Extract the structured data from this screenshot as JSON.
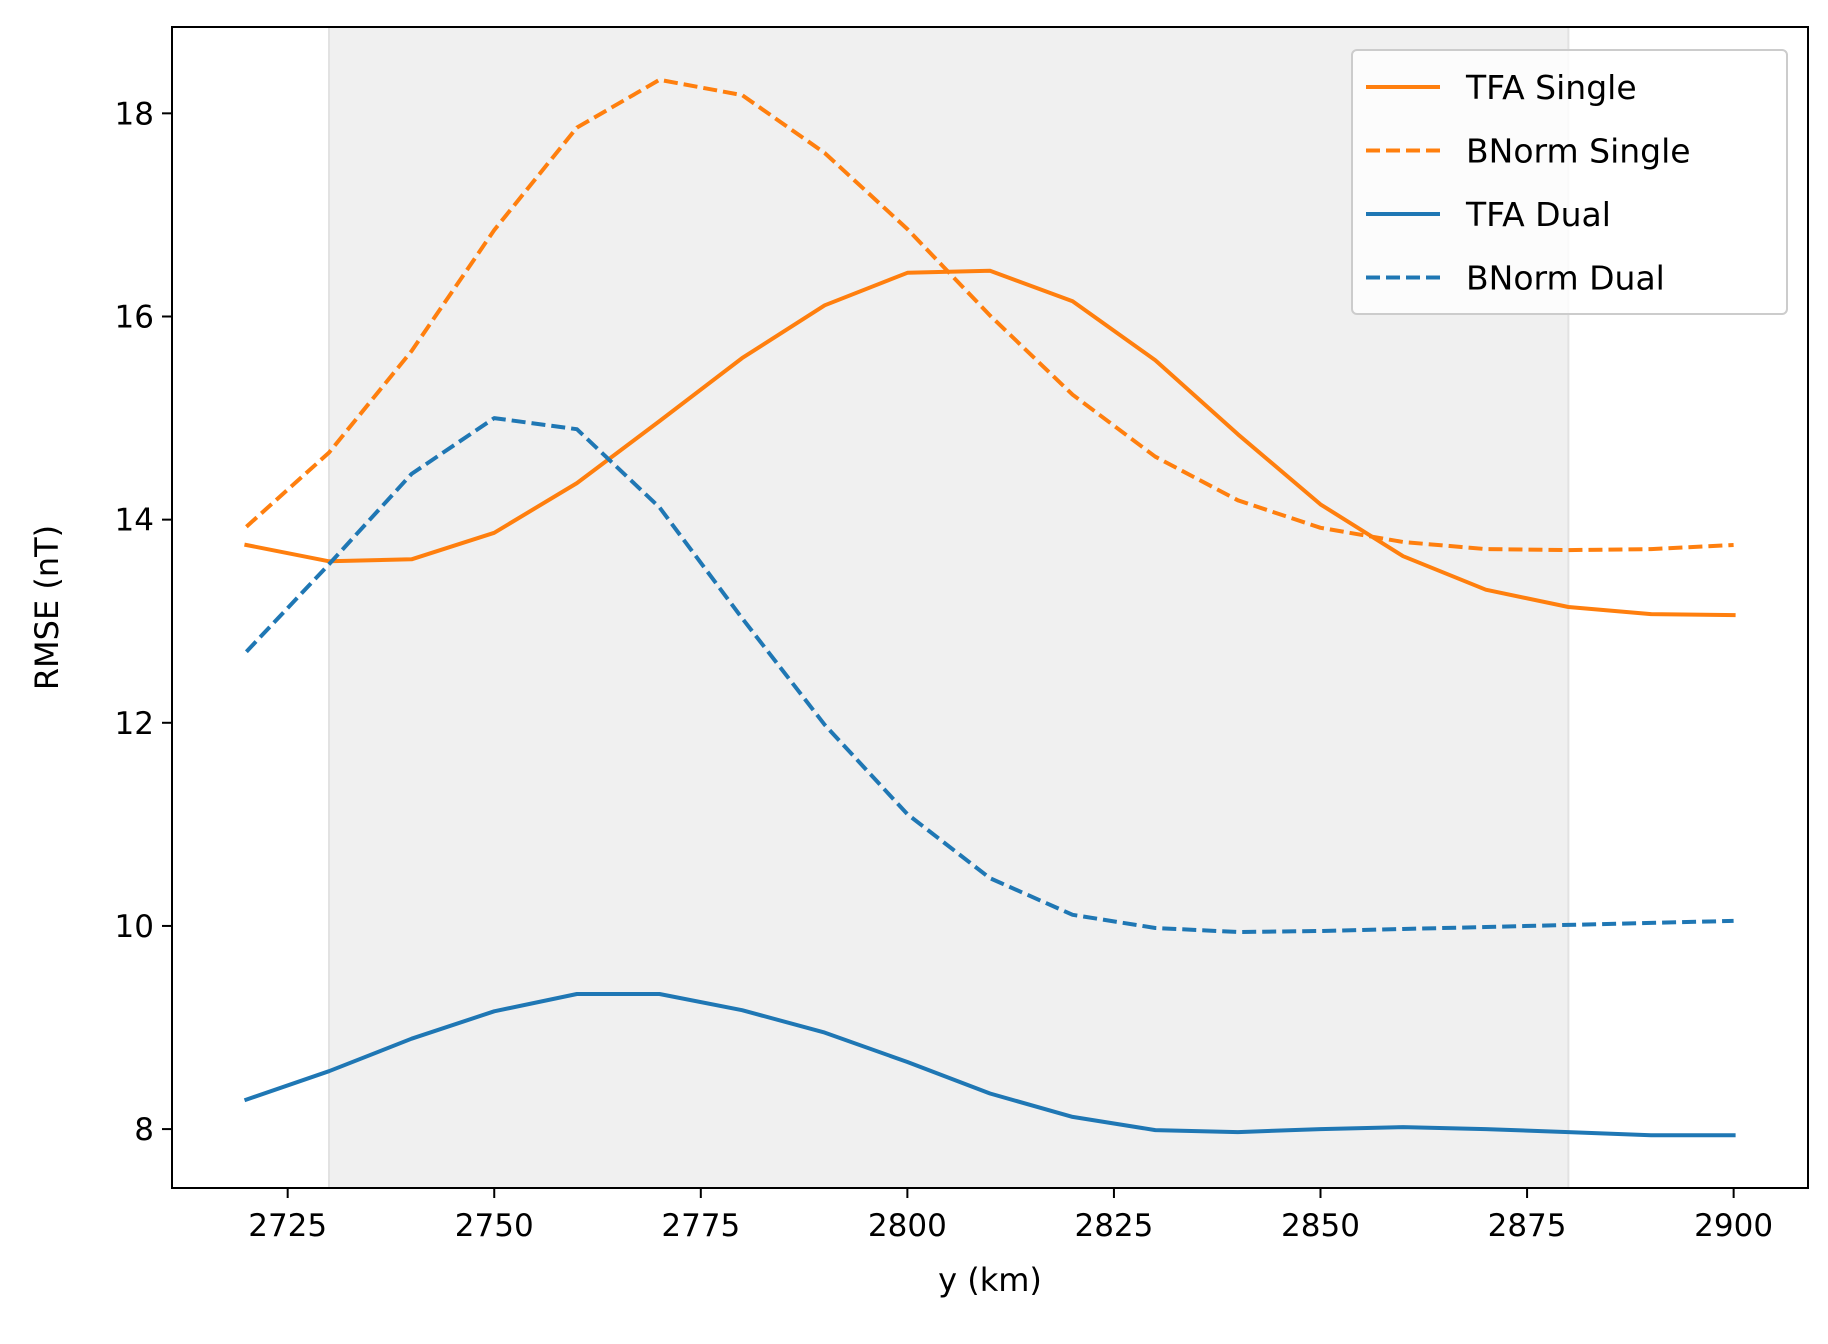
{
  "chart_data": {
    "type": "line",
    "title": "",
    "xlabel": "y (km)",
    "ylabel": "RMSE (nT)",
    "xlim": [
      2711,
      2909
    ],
    "ylim": [
      7.42,
      18.85
    ],
    "xticks": [
      2725,
      2750,
      2775,
      2800,
      2825,
      2850,
      2875,
      2900
    ],
    "yticks": [
      8,
      10,
      12,
      14,
      16,
      18
    ],
    "grid": false,
    "legend_position": "top-right",
    "shaded_region": {
      "x_start": 2730,
      "x_end": 2880,
      "color": "#f0f0f0"
    },
    "x": [
      2720,
      2730,
      2740,
      2750,
      2760,
      2770,
      2780,
      2790,
      2800,
      2810,
      2820,
      2830,
      2840,
      2850,
      2860,
      2870,
      2880,
      2890,
      2900
    ],
    "series": [
      {
        "name": "TFA Single",
        "color": "#ff7f0e",
        "dash": "solid",
        "values": [
          13.75,
          13.59,
          13.61,
          13.87,
          14.36,
          14.97,
          15.59,
          16.11,
          16.43,
          16.45,
          16.15,
          15.57,
          14.84,
          14.15,
          13.64,
          13.31,
          13.14,
          13.07,
          13.06
        ]
      },
      {
        "name": "BNorm Single",
        "color": "#ff7f0e",
        "dash": "dashed",
        "values": [
          13.93,
          14.66,
          15.66,
          16.85,
          17.86,
          18.33,
          18.18,
          17.61,
          16.86,
          16.01,
          15.23,
          14.62,
          14.19,
          13.92,
          13.78,
          13.71,
          13.7,
          13.71,
          13.75
        ]
      },
      {
        "name": "TFA Dual",
        "color": "#1f77b4",
        "dash": "solid",
        "values": [
          8.29,
          8.57,
          8.89,
          9.16,
          9.33,
          9.33,
          9.17,
          8.95,
          8.66,
          8.35,
          8.12,
          7.99,
          7.97,
          8.0,
          8.02,
          8.0,
          7.97,
          7.94,
          7.94
        ]
      },
      {
        "name": "BNorm Dual",
        "color": "#1f77b4",
        "dash": "dashed",
        "values": [
          12.7,
          13.56,
          14.45,
          15.0,
          14.89,
          14.12,
          13.03,
          11.98,
          11.1,
          10.47,
          10.11,
          9.98,
          9.94,
          9.95,
          9.97,
          9.99,
          10.01,
          10.03,
          10.05
        ]
      }
    ]
  }
}
